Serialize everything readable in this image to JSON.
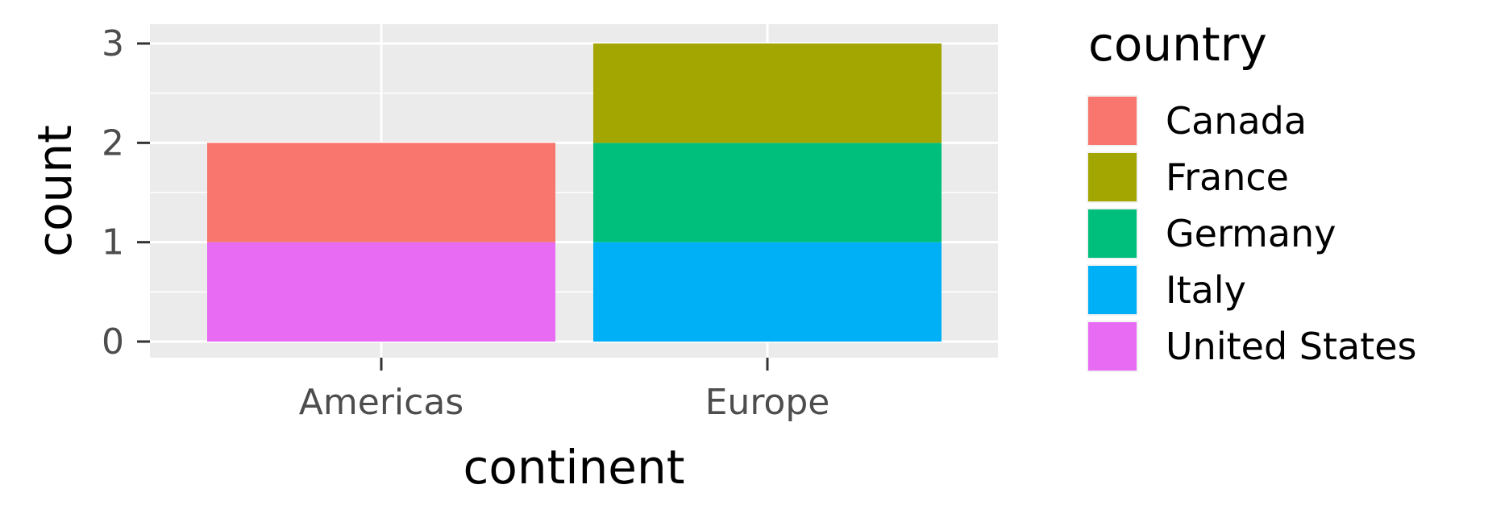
{
  "chart_data": {
    "type": "bar",
    "stacked": true,
    "categories": [
      "Americas",
      "Europe"
    ],
    "xlabel": "continent",
    "ylabel": "count",
    "ylim": [
      0,
      3
    ],
    "yticks": [
      "0",
      "1",
      "2",
      "3"
    ],
    "grid": true,
    "legend_title": "country",
    "legend_position": "right",
    "series": [
      {
        "name": "Canada",
        "color": "#F8766D",
        "values": [
          1,
          0
        ]
      },
      {
        "name": "France",
        "color": "#A3A500",
        "values": [
          0,
          1
        ]
      },
      {
        "name": "Germany",
        "color": "#00BF7D",
        "values": [
          0,
          1
        ]
      },
      {
        "name": "Italy",
        "color": "#00B0F6",
        "values": [
          0,
          1
        ]
      },
      {
        "name": "United States",
        "color": "#E76BF3",
        "values": [
          1,
          0
        ]
      }
    ],
    "stack_order": [
      "United States",
      "Italy",
      "Germany",
      "France",
      "Canada"
    ]
  }
}
